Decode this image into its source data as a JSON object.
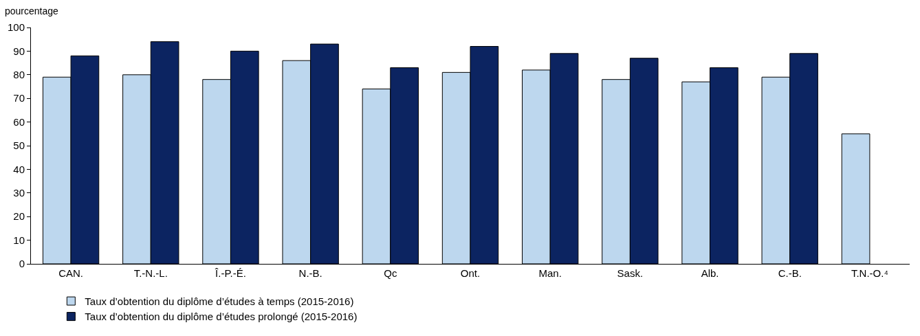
{
  "chart_data": {
    "type": "bar",
    "ylabel": "pourcentage",
    "categories": [
      "CAN.",
      "T.-N.-L.",
      "Î.-P.-É.",
      "N.-B.",
      "Qc",
      "Ont.",
      "Man.",
      "Sask.",
      "Alb.",
      "C.-B.",
      "T.N.-O.⁴"
    ],
    "series": [
      {
        "name": "Taux d’obtention du diplôme d’études à temps (2015-2016)",
        "color": "#bdd7ee",
        "values": [
          79,
          80,
          78,
          86,
          74,
          81,
          82,
          78,
          77,
          79,
          55
        ]
      },
      {
        "name": "Taux d’obtention du diplôme d’études prolongé (2015-2016)",
        "color": "#0c2461",
        "values": [
          88,
          94,
          90,
          93,
          83,
          92,
          89,
          87,
          83,
          89,
          null
        ]
      }
    ],
    "ylim": [
      0,
      100
    ],
    "yticks": [
      0,
      10,
      20,
      30,
      40,
      50,
      60,
      70,
      80,
      90,
      100
    ],
    "grid": false,
    "legend": "bottom"
  }
}
